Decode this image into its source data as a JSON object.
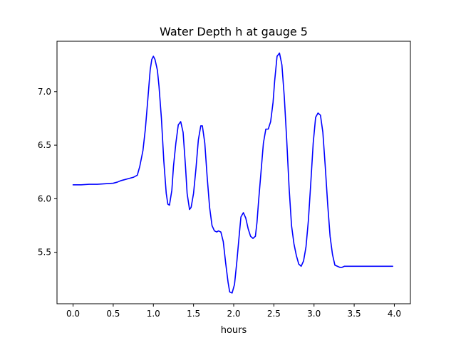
{
  "chart_data": {
    "type": "line",
    "title": "Water Depth h at gauge 5",
    "xlabel": "hours",
    "ylabel": "",
    "xlim": [
      -0.2,
      4.2
    ],
    "ylim": [
      5.02,
      7.47
    ],
    "grid": false,
    "x_ticks": [
      0.0,
      0.5,
      1.0,
      1.5,
      2.0,
      2.5,
      3.0,
      3.5,
      4.0
    ],
    "x_tick_labels": [
      "0.0",
      "0.5",
      "1.0",
      "1.5",
      "2.0",
      "2.5",
      "3.0",
      "3.5",
      "4.0"
    ],
    "y_ticks": [
      5.5,
      6.0,
      6.5,
      7.0
    ],
    "y_tick_labels": [
      "5.5",
      "6.0",
      "6.5",
      "7.0"
    ],
    "series": [
      {
        "color": "#0000ff",
        "x": [
          0.0,
          0.1,
          0.2,
          0.3,
          0.4,
          0.5,
          0.55,
          0.6,
          0.65,
          0.7,
          0.75,
          0.8,
          0.83,
          0.87,
          0.9,
          0.93,
          0.96,
          0.98,
          1.0,
          1.02,
          1.05,
          1.07,
          1.1,
          1.13,
          1.16,
          1.18,
          1.2,
          1.23,
          1.25,
          1.28,
          1.31,
          1.34,
          1.37,
          1.4,
          1.42,
          1.45,
          1.47,
          1.5,
          1.53,
          1.56,
          1.59,
          1.61,
          1.64,
          1.67,
          1.7,
          1.73,
          1.76,
          1.79,
          1.81,
          1.84,
          1.87,
          1.9,
          1.93,
          1.95,
          1.98,
          2.01,
          2.04,
          2.07,
          2.09,
          2.12,
          2.15,
          2.18,
          2.21,
          2.24,
          2.27,
          2.29,
          2.31,
          2.34,
          2.37,
          2.4,
          2.43,
          2.46,
          2.49,
          2.51,
          2.54,
          2.57,
          2.6,
          2.63,
          2.66,
          2.69,
          2.72,
          2.75,
          2.78,
          2.81,
          2.84,
          2.87,
          2.9,
          2.93,
          2.96,
          2.99,
          3.02,
          3.05,
          3.08,
          3.11,
          3.14,
          3.17,
          3.2,
          3.23,
          3.26,
          3.29,
          3.32,
          3.35,
          3.38,
          3.41,
          3.44,
          3.47,
          3.5,
          3.53,
          3.56,
          3.59,
          3.62,
          3.65,
          3.68,
          3.71,
          3.74,
          3.77,
          3.8,
          3.83,
          3.86,
          3.89,
          3.92,
          3.95,
          3.98
        ],
        "y": [
          6.13,
          6.13,
          6.135,
          6.135,
          6.14,
          6.145,
          6.155,
          6.17,
          6.18,
          6.19,
          6.2,
          6.22,
          6.3,
          6.45,
          6.65,
          6.92,
          7.2,
          7.3,
          7.33,
          7.3,
          7.2,
          7.05,
          6.75,
          6.35,
          6.05,
          5.95,
          5.94,
          6.08,
          6.3,
          6.52,
          6.69,
          6.72,
          6.62,
          6.3,
          6.05,
          5.9,
          5.92,
          6.05,
          6.28,
          6.55,
          6.68,
          6.68,
          6.52,
          6.2,
          5.92,
          5.75,
          5.7,
          5.69,
          5.7,
          5.69,
          5.6,
          5.4,
          5.22,
          5.13,
          5.12,
          5.2,
          5.42,
          5.67,
          5.83,
          5.87,
          5.82,
          5.72,
          5.65,
          5.63,
          5.65,
          5.78,
          5.98,
          6.25,
          6.52,
          6.65,
          6.65,
          6.72,
          6.9,
          7.1,
          7.33,
          7.36,
          7.25,
          6.95,
          6.55,
          6.1,
          5.75,
          5.58,
          5.47,
          5.39,
          5.37,
          5.42,
          5.55,
          5.8,
          6.15,
          6.52,
          6.76,
          6.8,
          6.78,
          6.62,
          6.3,
          5.95,
          5.65,
          5.48,
          5.38,
          5.37,
          5.36,
          5.36,
          5.37,
          5.37,
          5.37,
          5.37,
          5.37,
          5.37,
          5.37,
          5.37,
          5.37,
          5.37,
          5.37,
          5.37,
          5.37,
          5.37,
          5.37,
          5.37,
          5.37,
          5.37,
          5.37,
          5.37,
          5.37
        ]
      }
    ]
  }
}
